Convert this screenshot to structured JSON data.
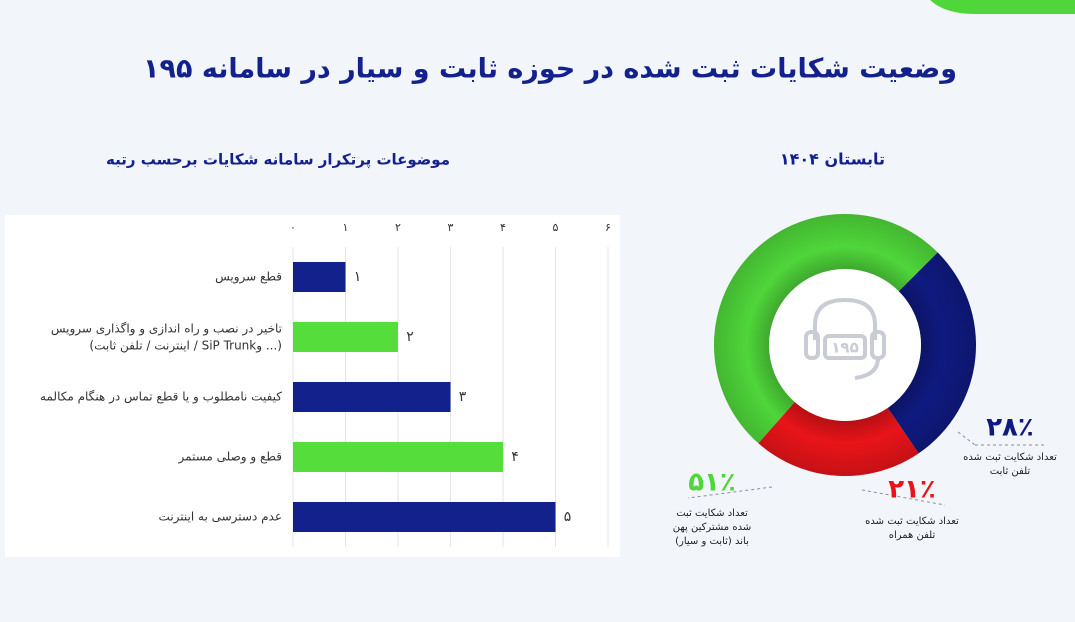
{
  "header": {
    "title": "وضعیت شکایات ثبت شده در حوزه ثابت و سیار در سامانه ۱۹۵"
  },
  "chart_data": [
    {
      "type": "bar",
      "orientation": "horizontal",
      "title": "موضوعات پرتکرار سامانه شکایات برحسب رتبه",
      "categories": [
        "قطع سرویس",
        "تاخیر در نصب و راه اندازی و واگذاری سرویس\n(اینترنت / تلفن ثابت /  SiP Trunkو ...)",
        "کیفیت نامطلوب و یا قطع تماس در هنگام مکالمه",
        "قطع و وصلی مستمر",
        "عدم دسترسی به اینترنت"
      ],
      "values": [
        1,
        2,
        3,
        4,
        5
      ],
      "value_labels": [
        "۱",
        "۲",
        "۳",
        "۴",
        "۵"
      ],
      "colors": [
        "#13218c",
        "#55dd3c",
        "#13218c",
        "#55dd3c",
        "#13218c"
      ],
      "xlim": [
        0,
        6
      ],
      "xticks": [
        {
          "value": 0,
          "label": "۰"
        },
        {
          "value": 1,
          "label": "۱"
        },
        {
          "value": 2,
          "label": "۲"
        },
        {
          "value": 3,
          "label": "۳"
        },
        {
          "value": 4,
          "label": "۴"
        },
        {
          "value": 5,
          "label": "۵"
        },
        {
          "value": 6,
          "label": "۶"
        }
      ],
      "grid": true
    },
    {
      "type": "donut",
      "title": "تابستان ۱۴۰۴",
      "center_label": "۱۹۵",
      "categories": [
        "تعداد شکایت ثبت شده\nتلفن ثابت",
        "تعداد شکایت ثبت شده\nتلفن همراه",
        "تعداد شکایت ثبت\nشده مشترکین پهن\nباند (ثابت و سیار)"
      ],
      "values": [
        28,
        21,
        51
      ],
      "value_labels": [
        "۲۸٪",
        "۲۱٪",
        "۵۱٪"
      ],
      "colors": [
        "#0f1a80",
        "#e81419",
        "#4fd63a"
      ]
    }
  ]
}
